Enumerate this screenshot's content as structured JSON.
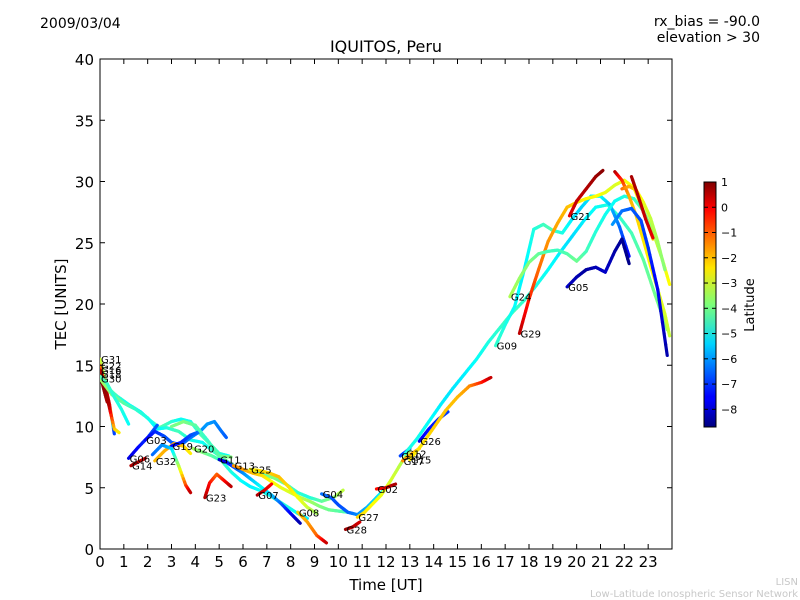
{
  "header": {
    "date": "2009/03/04",
    "bias_line": "rx_bias = -90.0",
    "elevation_line": "elevation > 30"
  },
  "footer": {
    "credit_short": "LISN",
    "credit_long": "Low-Latitude Ionospheric Sensor Network"
  },
  "chart_data": {
    "type": "scatter",
    "title": "IQUITOS, Peru",
    "xlabel": "Time [UT]",
    "ylabel": "TEC [UNITS]",
    "xlim": [
      0,
      24
    ],
    "ylim": [
      0,
      40
    ],
    "x_ticks": [
      0,
      1,
      2,
      3,
      4,
      5,
      6,
      7,
      8,
      9,
      10,
      11,
      12,
      13,
      14,
      15,
      16,
      17,
      18,
      19,
      20,
      21,
      22,
      23
    ],
    "y_ticks": [
      0,
      5,
      10,
      15,
      20,
      25,
      30,
      35,
      40
    ],
    "grid": false,
    "colorbar": {
      "label": "Latitude",
      "range": [
        -8.7,
        1
      ],
      "ticks": [
        1,
        0,
        -1,
        -2,
        -3,
        -4,
        -5,
        -6,
        -7,
        -8
      ],
      "colormap": [
        "#00007f",
        "#0000ff",
        "#007fff",
        "#00ffff",
        "#7fff7f",
        "#ffff00",
        "#ff7f00",
        "#ff0000",
        "#7f0000"
      ]
    },
    "series": [
      {
        "name": "G31",
        "x": [
          0.0,
          0.3,
          0.7,
          1.2,
          1.7,
          2.1,
          2.5,
          3.0,
          3.4,
          3.8,
          4.2,
          4.6,
          5.0,
          5.4
        ],
        "y": [
          15.5,
          13.2,
          12.5,
          11.8,
          11.2,
          10.5,
          9.9,
          10.4,
          10.6,
          10.4,
          9.4,
          8.6,
          7.8,
          7.6
        ],
        "lat": [
          -3.0,
          -4.0,
          -4.5,
          -5.0,
          -5.2,
          -5.0,
          -4.2,
          -4.6,
          -5.0,
          -4.8,
          -4.4,
          -4.2,
          -4.6,
          -5.0
        ]
      },
      {
        "name": "G22",
        "x": [
          0.0,
          0.2,
          0.4,
          0.6
        ],
        "y": [
          15.0,
          13.5,
          11.8,
          9.4
        ],
        "lat": [
          -1.5,
          -0.2,
          0.5,
          -7.5
        ]
      },
      {
        "name": "G16",
        "x": [
          0.0,
          0.2,
          0.4,
          0.6,
          0.8
        ],
        "y": [
          14.6,
          13.2,
          11.5,
          9.8,
          9.5
        ],
        "lat": [
          0.3,
          0.8,
          0.5,
          -2.0,
          -2.5
        ]
      },
      {
        "name": "G18",
        "x": [
          0.0,
          0.15,
          0.3
        ],
        "y": [
          14.3,
          13.1,
          12.0
        ],
        "lat": [
          0.5,
          0.9,
          0.6
        ]
      },
      {
        "name": "G30",
        "x": [
          0.0,
          0.5,
          1.0,
          1.5,
          2.0,
          2.4,
          2.8,
          3.3,
          3.8,
          4.3,
          4.8,
          5.3,
          5.8,
          6.3,
          6.8,
          7.3,
          7.8,
          8.3,
          8.8,
          9.3,
          9.8,
          10.2
        ],
        "y": [
          13.9,
          12.6,
          11.9,
          11.4,
          10.7,
          9.8,
          9.9,
          9.6,
          8.9,
          8.7,
          7.9,
          7.2,
          6.6,
          6.3,
          6.1,
          5.8,
          5.3,
          4.6,
          4.2,
          3.9,
          4.2,
          4.8
        ],
        "lat": [
          -3.5,
          -3.8,
          -4.2,
          -4.6,
          -4.8,
          -5.2,
          -4.8,
          -4.4,
          -4.8,
          -5.0,
          -4.6,
          -4.2,
          -4.6,
          -4.9,
          -4.2,
          -3.8,
          -4.2,
          -4.6,
          -4.8,
          -4.2,
          -3.8,
          -3.2
        ]
      },
      {
        "name": "G06",
        "x": [
          1.2,
          1.6,
          2.0,
          2.4
        ],
        "y": [
          7.4,
          8.3,
          9.1,
          10.1
        ],
        "lat": [
          -7.8,
          -7.5,
          -7.0,
          -6.6
        ]
      },
      {
        "name": "G03",
        "x": [
          1.9,
          2.3,
          2.7,
          3.0,
          3.4,
          3.8,
          4.2,
          4.5,
          4.8,
          5.1,
          5.3
        ],
        "y": [
          8.9,
          9.6,
          9.2,
          8.7,
          8.5,
          9.1,
          9.6,
          10.2,
          10.4,
          9.6,
          9.1
        ],
        "lat": [
          -7.6,
          -7.2,
          -6.8,
          -6.6,
          -6.6,
          -6.4,
          -6.2,
          -6.0,
          -6.1,
          -6.4,
          -6.6
        ]
      },
      {
        "name": "G14",
        "x": [
          1.3,
          1.6,
          1.9
        ],
        "y": [
          6.8,
          7.1,
          7.4
        ],
        "lat": [
          0.6,
          0.4,
          0.2
        ]
      },
      {
        "name": "G32",
        "x": [
          2.3,
          2.7,
          3.1,
          3.5,
          3.8
        ],
        "y": [
          7.2,
          8.0,
          8.6,
          8.4,
          7.8
        ],
        "lat": [
          -2.0,
          -1.9,
          -1.8,
          -2.1,
          -2.5
        ]
      },
      {
        "name": "G19",
        "x": [
          3.0,
          3.4,
          3.8,
          4.2
        ],
        "y": [
          8.4,
          8.7,
          9.3,
          9.6
        ],
        "lat": [
          -7.6,
          -7.2,
          -6.8,
          -6.4
        ]
      },
      {
        "name": "G20",
        "x": [
          3.9,
          4.3,
          4.7,
          5.1,
          5.5,
          5.9,
          6.3,
          6.7,
          7.1,
          7.5,
          7.9,
          8.3,
          8.7
        ],
        "y": [
          8.2,
          7.9,
          7.6,
          7.2,
          6.3,
          5.6,
          5.1,
          4.8,
          4.4,
          3.9,
          3.4,
          2.9,
          2.5
        ],
        "lat": [
          -3.5,
          -3.8,
          -4.2,
          -4.5,
          -4.8,
          -5.0,
          -5.2,
          -5.0,
          -4.8,
          -4.6,
          -4.8,
          -5.0,
          -5.2
        ]
      },
      {
        "name": "G11",
        "x": [
          5.0,
          5.3,
          5.6,
          6.0,
          6.4,
          6.8,
          7.2,
          7.6,
          8.0,
          8.4
        ],
        "y": [
          7.3,
          7.1,
          6.7,
          6.2,
          5.6,
          5.0,
          4.4,
          3.7,
          2.9,
          2.1
        ],
        "lat": [
          -8.0,
          -7.6,
          -6.8,
          -6.2,
          -5.6,
          -5.0,
          -5.6,
          -6.5,
          -7.5,
          -8.3
        ]
      },
      {
        "name": "G13",
        "x": [
          5.6,
          6.0,
          6.4,
          6.8,
          7.2,
          7.6,
          8.0,
          8.4,
          8.8,
          9.2,
          9.6,
          10.0,
          10.4
        ],
        "y": [
          6.8,
          6.5,
          6.2,
          6.0,
          5.5,
          5.0,
          4.6,
          4.2,
          3.9,
          3.5,
          3.2,
          3.1,
          3.0
        ],
        "lat": [
          -1.5,
          -1.7,
          -2.0,
          -2.3,
          -2.6,
          -2.8,
          -3.0,
          -3.2,
          -3.5,
          -3.8,
          -4.0,
          -4.2,
          -4.4
        ]
      },
      {
        "name": "G25",
        "x": [
          6.3,
          6.7,
          7.1,
          7.5,
          7.9,
          8.3,
          8.7,
          9.1
        ],
        "y": [
          6.5,
          6.4,
          6.2,
          5.9,
          5.1,
          4.2,
          3.4,
          2.9
        ],
        "lat": [
          -2.6,
          -2.4,
          -2.2,
          -2.0,
          -2.3,
          -2.7,
          -3.1,
          -3.5
        ]
      },
      {
        "name": "G23",
        "x": [
          4.4,
          4.6,
          4.9,
          5.2,
          5.5
        ],
        "y": [
          4.2,
          5.4,
          6.1,
          5.6,
          5.1
        ],
        "lat": [
          0.6,
          -0.2,
          -1.2,
          -0.4,
          0.5
        ]
      },
      {
        "name": "G07",
        "x": [
          6.6,
          6.9,
          7.2
        ],
        "y": [
          4.4,
          4.8,
          5.3
        ],
        "lat": [
          0.6,
          0.2,
          -0.2
        ]
      },
      {
        "name": "G08",
        "x": [
          8.3,
          8.7,
          9.1,
          9.5
        ],
        "y": [
          3.0,
          2.2,
          1.1,
          0.5
        ],
        "lat": [
          -2.2,
          -1.8,
          -1.2,
          0.4
        ]
      },
      {
        "name": "G04",
        "x": [
          9.3,
          9.7,
          10.0,
          10.4,
          10.8,
          11.2,
          11.6,
          12.0
        ],
        "y": [
          4.5,
          4.2,
          3.6,
          3.0,
          2.8,
          3.4,
          4.2,
          5.0
        ],
        "lat": [
          -6.4,
          -6.6,
          -6.8,
          -6.6,
          -6.2,
          -5.8,
          -5.4,
          -5.0
        ]
      },
      {
        "name": "G28",
        "x": [
          10.3,
          10.6,
          10.9
        ],
        "y": [
          1.6,
          1.8,
          2.2
        ],
        "lat": [
          0.8,
          0.5,
          0.2
        ]
      },
      {
        "name": "G27",
        "x": [
          10.8,
          11.1,
          11.4,
          11.8,
          12.2,
          12.6,
          13.0
        ],
        "y": [
          2.6,
          3.0,
          3.6,
          4.4,
          5.6,
          6.9,
          8.1
        ],
        "lat": [
          -2.2,
          -2.4,
          -2.6,
          -2.8,
          -3.0,
          -3.3,
          -3.6
        ]
      },
      {
        "name": "G02",
        "x": [
          11.6,
          12.0,
          12.4
        ],
        "y": [
          4.9,
          5.0,
          5.3
        ],
        "lat": [
          -0.4,
          0.2,
          0.6
        ]
      },
      {
        "name": "G10",
        "x": [
          12.6,
          13.0
        ],
        "y": [
          7.6,
          8.2
        ],
        "lat": [
          -6.8,
          -7.2
        ]
      },
      {
        "name": "G17",
        "x": [
          12.7,
          13.1,
          13.4
        ],
        "y": [
          7.2,
          7.8,
          8.2
        ],
        "lat": [
          -1.5,
          -1.8,
          -2.0
        ]
      },
      {
        "name": "G26",
        "x": [
          13.4,
          13.8,
          14.2,
          14.6
        ],
        "y": [
          8.8,
          9.8,
          10.6,
          11.2
        ],
        "lat": [
          -7.6,
          -7.4,
          -7.1,
          -6.9
        ]
      },
      {
        "name": "G15",
        "x": [
          13.0,
          13.5,
          14.0,
          14.5,
          15.0,
          15.5,
          16.0,
          16.4
        ],
        "y": [
          7.3,
          8.5,
          9.9,
          11.3,
          12.4,
          13.3,
          13.6,
          14.0
        ],
        "lat": [
          -2.5,
          -2.4,
          -2.2,
          -2.1,
          -2.0,
          -1.6,
          -0.6,
          0.4
        ]
      },
      {
        "name": "G12",
        "x": [
          12.8,
          13.3,
          13.8,
          14.3,
          14.8,
          15.3,
          15.8,
          16.3,
          16.8,
          17.3,
          17.8,
          18.3,
          18.8,
          19.3,
          19.8,
          20.3,
          20.8,
          21.3,
          21.8,
          22.3,
          22.8,
          23.3,
          23.8
        ],
        "y": [
          7.8,
          9.0,
          10.4,
          11.8,
          13.1,
          14.3,
          15.5,
          16.9,
          18.1,
          19.3,
          20.3,
          21.5,
          22.8,
          24.2,
          25.5,
          26.8,
          27.9,
          28.1,
          27.1,
          25.8,
          23.6,
          20.7,
          17.9
        ],
        "lat": [
          -4.8,
          -4.9,
          -5.0,
          -5.2,
          -5.3,
          -5.2,
          -5.0,
          -4.8,
          -4.6,
          -4.4,
          -4.6,
          -4.8,
          -5.0,
          -5.2,
          -5.4,
          -5.2,
          -5.0,
          -4.8,
          -4.6,
          -4.4,
          -4.2,
          -4.0,
          -3.8
        ]
      },
      {
        "name": "G09",
        "x": [
          16.6,
          17.0,
          17.4,
          17.8,
          18.2,
          18.6,
          19.0,
          19.4,
          19.8,
          20.2,
          20.6,
          21.0,
          21.4,
          21.8,
          22.2
        ],
        "y": [
          16.6,
          18.3,
          19.8,
          22.8,
          26.1,
          26.5,
          26.0,
          25.8,
          26.9,
          27.9,
          28.8,
          28.8,
          28.1,
          26.3,
          23.9
        ],
        "lat": [
          -4.6,
          -4.8,
          -5.0,
          -5.2,
          -4.8,
          -4.5,
          -4.3,
          -4.8,
          -5.2,
          -5.5,
          -5.3,
          -5.0,
          -5.6,
          -6.4,
          -7.6
        ]
      },
      {
        "name": "G29",
        "x": [
          17.6,
          18.0,
          18.4,
          18.8,
          19.2,
          19.6,
          20.0,
          20.4,
          20.8,
          21.2,
          21.6,
          22.0,
          22.4,
          22.8,
          23.2
        ],
        "y": [
          17.6,
          20.4,
          22.8,
          25.1,
          26.6,
          27.9,
          28.3,
          28.6,
          28.8,
          29.1,
          29.7,
          30.1,
          29.5,
          27.6,
          25.3
        ],
        "lat": [
          0.5,
          -0.5,
          -1.2,
          -1.6,
          -1.8,
          -2.0,
          -2.3,
          -2.6,
          -2.6,
          -2.8,
          -3.0,
          -2.8,
          -2.6,
          -2.4,
          -2.2
        ]
      },
      {
        "name": "G24",
        "x": [
          17.2,
          17.6,
          18.0,
          18.4,
          18.8,
          19.2,
          19.6,
          20.0,
          20.4,
          20.8,
          21.2,
          21.6,
          22.0,
          22.4,
          22.8,
          23.2,
          23.6,
          23.9
        ],
        "y": [
          20.6,
          22.1,
          23.4,
          24.1,
          24.3,
          24.4,
          24.1,
          23.5,
          24.3,
          25.9,
          27.3,
          28.4,
          28.8,
          28.6,
          27.6,
          25.9,
          23.6,
          21.6
        ],
        "lat": [
          -3.4,
          -3.6,
          -3.8,
          -4.1,
          -4.4,
          -4.5,
          -4.3,
          -4.0,
          -4.4,
          -4.7,
          -4.9,
          -5.0,
          -4.8,
          -4.6,
          -4.0,
          -3.5,
          -3.0,
          -2.6
        ]
      },
      {
        "name": "G21",
        "x": [
          19.7,
          20.0,
          20.4,
          20.8,
          21.1
        ],
        "y": [
          27.2,
          28.4,
          29.4,
          30.4,
          30.9
        ],
        "lat": [
          0.0,
          0.3,
          0.5,
          0.7,
          0.9
        ]
      },
      {
        "name": "G05",
        "x": [
          19.6,
          20.0,
          20.4,
          20.8,
          21.2,
          21.6,
          21.9,
          22.2
        ],
        "y": [
          21.4,
          22.2,
          22.8,
          23.0,
          22.6,
          24.3,
          25.3,
          23.3
        ],
        "lat": [
          -8.0,
          -8.2,
          -8.4,
          -8.2,
          -8.0,
          -8.3,
          -8.5,
          -8.6
        ]
      },
      {
        "name": "",
        "x": [
          21.6,
          21.9,
          22.2,
          22.5,
          22.8,
          23.1,
          23.4,
          23.7,
          23.9
        ],
        "y": [
          30.8,
          30.1,
          28.8,
          27.2,
          25.2,
          23.1,
          21.2,
          19.2,
          17.4
        ],
        "lat": [
          0.6,
          -0.6,
          -1.8,
          -2.2,
          -2.4,
          -2.6,
          -2.8,
          -3.0,
          -3.2
        ]
      },
      {
        "name": "",
        "x": [
          21.9,
          22.2,
          22.5,
          22.8,
          23.1,
          23.4,
          23.7
        ],
        "y": [
          29.4,
          29.6,
          29.3,
          28.3,
          27.0,
          25.1,
          22.8
        ],
        "lat": [
          -1.2,
          -1.8,
          -2.3,
          -2.8,
          -3.2,
          -3.5,
          -3.8
        ]
      },
      {
        "name": "",
        "x": [
          22.3,
          22.6,
          22.9,
          23.2
        ],
        "y": [
          30.4,
          28.7,
          26.9,
          25.4
        ],
        "lat": [
          0.6,
          0.5,
          0.3,
          0.0
        ]
      },
      {
        "name": "",
        "x": [
          21.5,
          21.9,
          22.3,
          22.7,
          23.0,
          23.4,
          23.8
        ],
        "y": [
          26.5,
          27.6,
          27.8,
          26.8,
          24.6,
          21.2,
          15.8
        ],
        "lat": [
          -6.0,
          -6.4,
          -6.6,
          -6.8,
          -7.0,
          -7.6,
          -8.3
        ]
      },
      {
        "name": "",
        "x": [
          2.2,
          2.6,
          3.0,
          3.3,
          3.6,
          3.8
        ],
        "y": [
          7.7,
          8.5,
          8.2,
          6.8,
          5.2,
          4.6
        ],
        "lat": [
          -6.5,
          -6.2,
          -5.6,
          -3.5,
          -1.0,
          0.5
        ]
      },
      {
        "name": "",
        "x": [
          0.0,
          0.3,
          0.6,
          0.9,
          1.2
        ],
        "y": [
          14.1,
          13.5,
          12.4,
          11.4,
          10.2
        ],
        "lat": [
          -4.3,
          -4.5,
          -4.7,
          -4.8,
          -5.0
        ]
      },
      {
        "name": "",
        "x": [
          3.0,
          3.5,
          4.0,
          4.5,
          5.0,
          5.5
        ],
        "y": [
          10.0,
          10.4,
          10.1,
          8.9,
          7.6,
          7.5
        ],
        "lat": [
          -4.0,
          -3.8,
          -4.2,
          -4.6,
          -4.2,
          -3.8
        ]
      }
    ]
  }
}
